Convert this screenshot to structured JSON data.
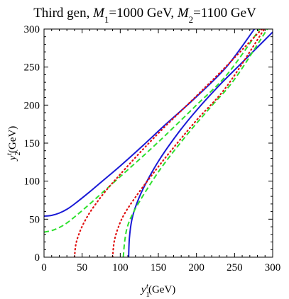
{
  "chart_data": {
    "type": "line",
    "title_prefix": "Third gen, ",
    "title_M1_val": "=1000 GeV, ",
    "title_M2_val": "=1100 GeV",
    "xlabel_unit": "(GeV)",
    "ylabel_unit": "(GeV)",
    "xlim": [
      0,
      300
    ],
    "ylim": [
      0,
      300
    ],
    "xticks": [
      "0",
      "50",
      "100",
      "150",
      "200",
      "250",
      "300"
    ],
    "yticks": [
      "0",
      "50",
      "100",
      "150",
      "200",
      "250",
      "300"
    ],
    "colors": {
      "blue": "#1a1ad6",
      "green": "#2ee02e",
      "red": "#e01010"
    },
    "series": [
      {
        "style": "blue-solid",
        "x": [
          0,
          10,
          20,
          30,
          40,
          60,
          80,
          100,
          130,
          160,
          200,
          240,
          276
        ],
        "y": [
          54,
          55,
          58,
          63,
          70,
          86,
          103,
          120,
          147,
          175,
          211,
          251,
          300
        ]
      },
      {
        "style": "blue-solid",
        "x": [
          111,
          112,
          115,
          120,
          130,
          150,
          175,
          200,
          230,
          260,
          300
        ],
        "y": [
          0,
          25,
          48,
          66,
          90,
          126,
          162,
          193,
          226,
          256,
          296
        ]
      },
      {
        "style": "green-dashed",
        "x": [
          0,
          10,
          20,
          30,
          45,
          60,
          80,
          100,
          130,
          160,
          200,
          240,
          283
        ],
        "y": [
          33,
          35,
          39,
          45,
          57,
          70,
          88,
          106,
          133,
          161,
          200,
          240,
          300
        ]
      },
      {
        "style": "green-dashed",
        "x": [
          104,
          106,
          110,
          120,
          140,
          160,
          190,
          220,
          250,
          293
        ],
        "y": [
          0,
          22,
          42,
          64,
          97,
          126,
          164,
          199,
          234,
          300
        ]
      },
      {
        "style": "red-dotted",
        "x": [
          40,
          42,
          48,
          56,
          65,
          80,
          100,
          130,
          160,
          200,
          240,
          286
        ],
        "y": [
          0,
          18,
          36,
          52,
          66,
          86,
          109,
          142,
          173,
          212,
          252,
          300
        ]
      },
      {
        "style": "red-dotted",
        "x": [
          90,
          92,
          97,
          105,
          120,
          140,
          165,
          200,
          240,
          289
        ],
        "y": [
          0,
          20,
          38,
          56,
          79,
          106,
          138,
          180,
          225,
          300
        ]
      }
    ]
  }
}
